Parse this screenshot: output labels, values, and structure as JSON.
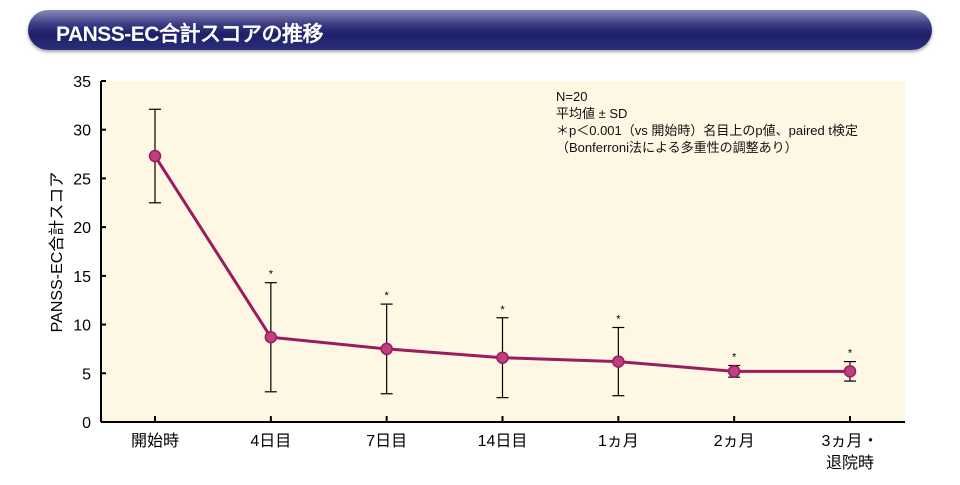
{
  "header": {
    "title": "PANSS-EC合計スコアの推移"
  },
  "notes": {
    "line1": "N=20",
    "line2": "平均値 ± SD",
    "line3": "＊p＜0.001（vs 開始時）名目上のp値、paired t検定",
    "line4": "（Bonferroni法による多重性の調整あり）"
  },
  "chart_data": {
    "type": "line",
    "title": "PANSS-EC合計スコアの推移",
    "xlabel": "",
    "ylabel": "PANSS-EC合計スコア",
    "ylim": [
      0,
      35
    ],
    "yticks": [
      0,
      5,
      10,
      15,
      20,
      25,
      30,
      35
    ],
    "categories": [
      "開始時",
      "4日目",
      "7日目",
      "14日目",
      "1ヵ月",
      "2ヵ月",
      "3ヵ月・\n退院時"
    ],
    "values": [
      27.3,
      8.7,
      7.5,
      6.6,
      6.2,
      5.2,
      5.2
    ],
    "sd": [
      4.8,
      5.6,
      4.6,
      4.1,
      3.5,
      0.6,
      1.0
    ],
    "significant": [
      false,
      true,
      true,
      true,
      true,
      true,
      true
    ],
    "significance_marker": "*",
    "grid": false,
    "colors": {
      "line": "#9b1b5f",
      "marker": "#c0407f",
      "plot_bg": "#fdf7e4",
      "banner": "#1d2068"
    }
  }
}
